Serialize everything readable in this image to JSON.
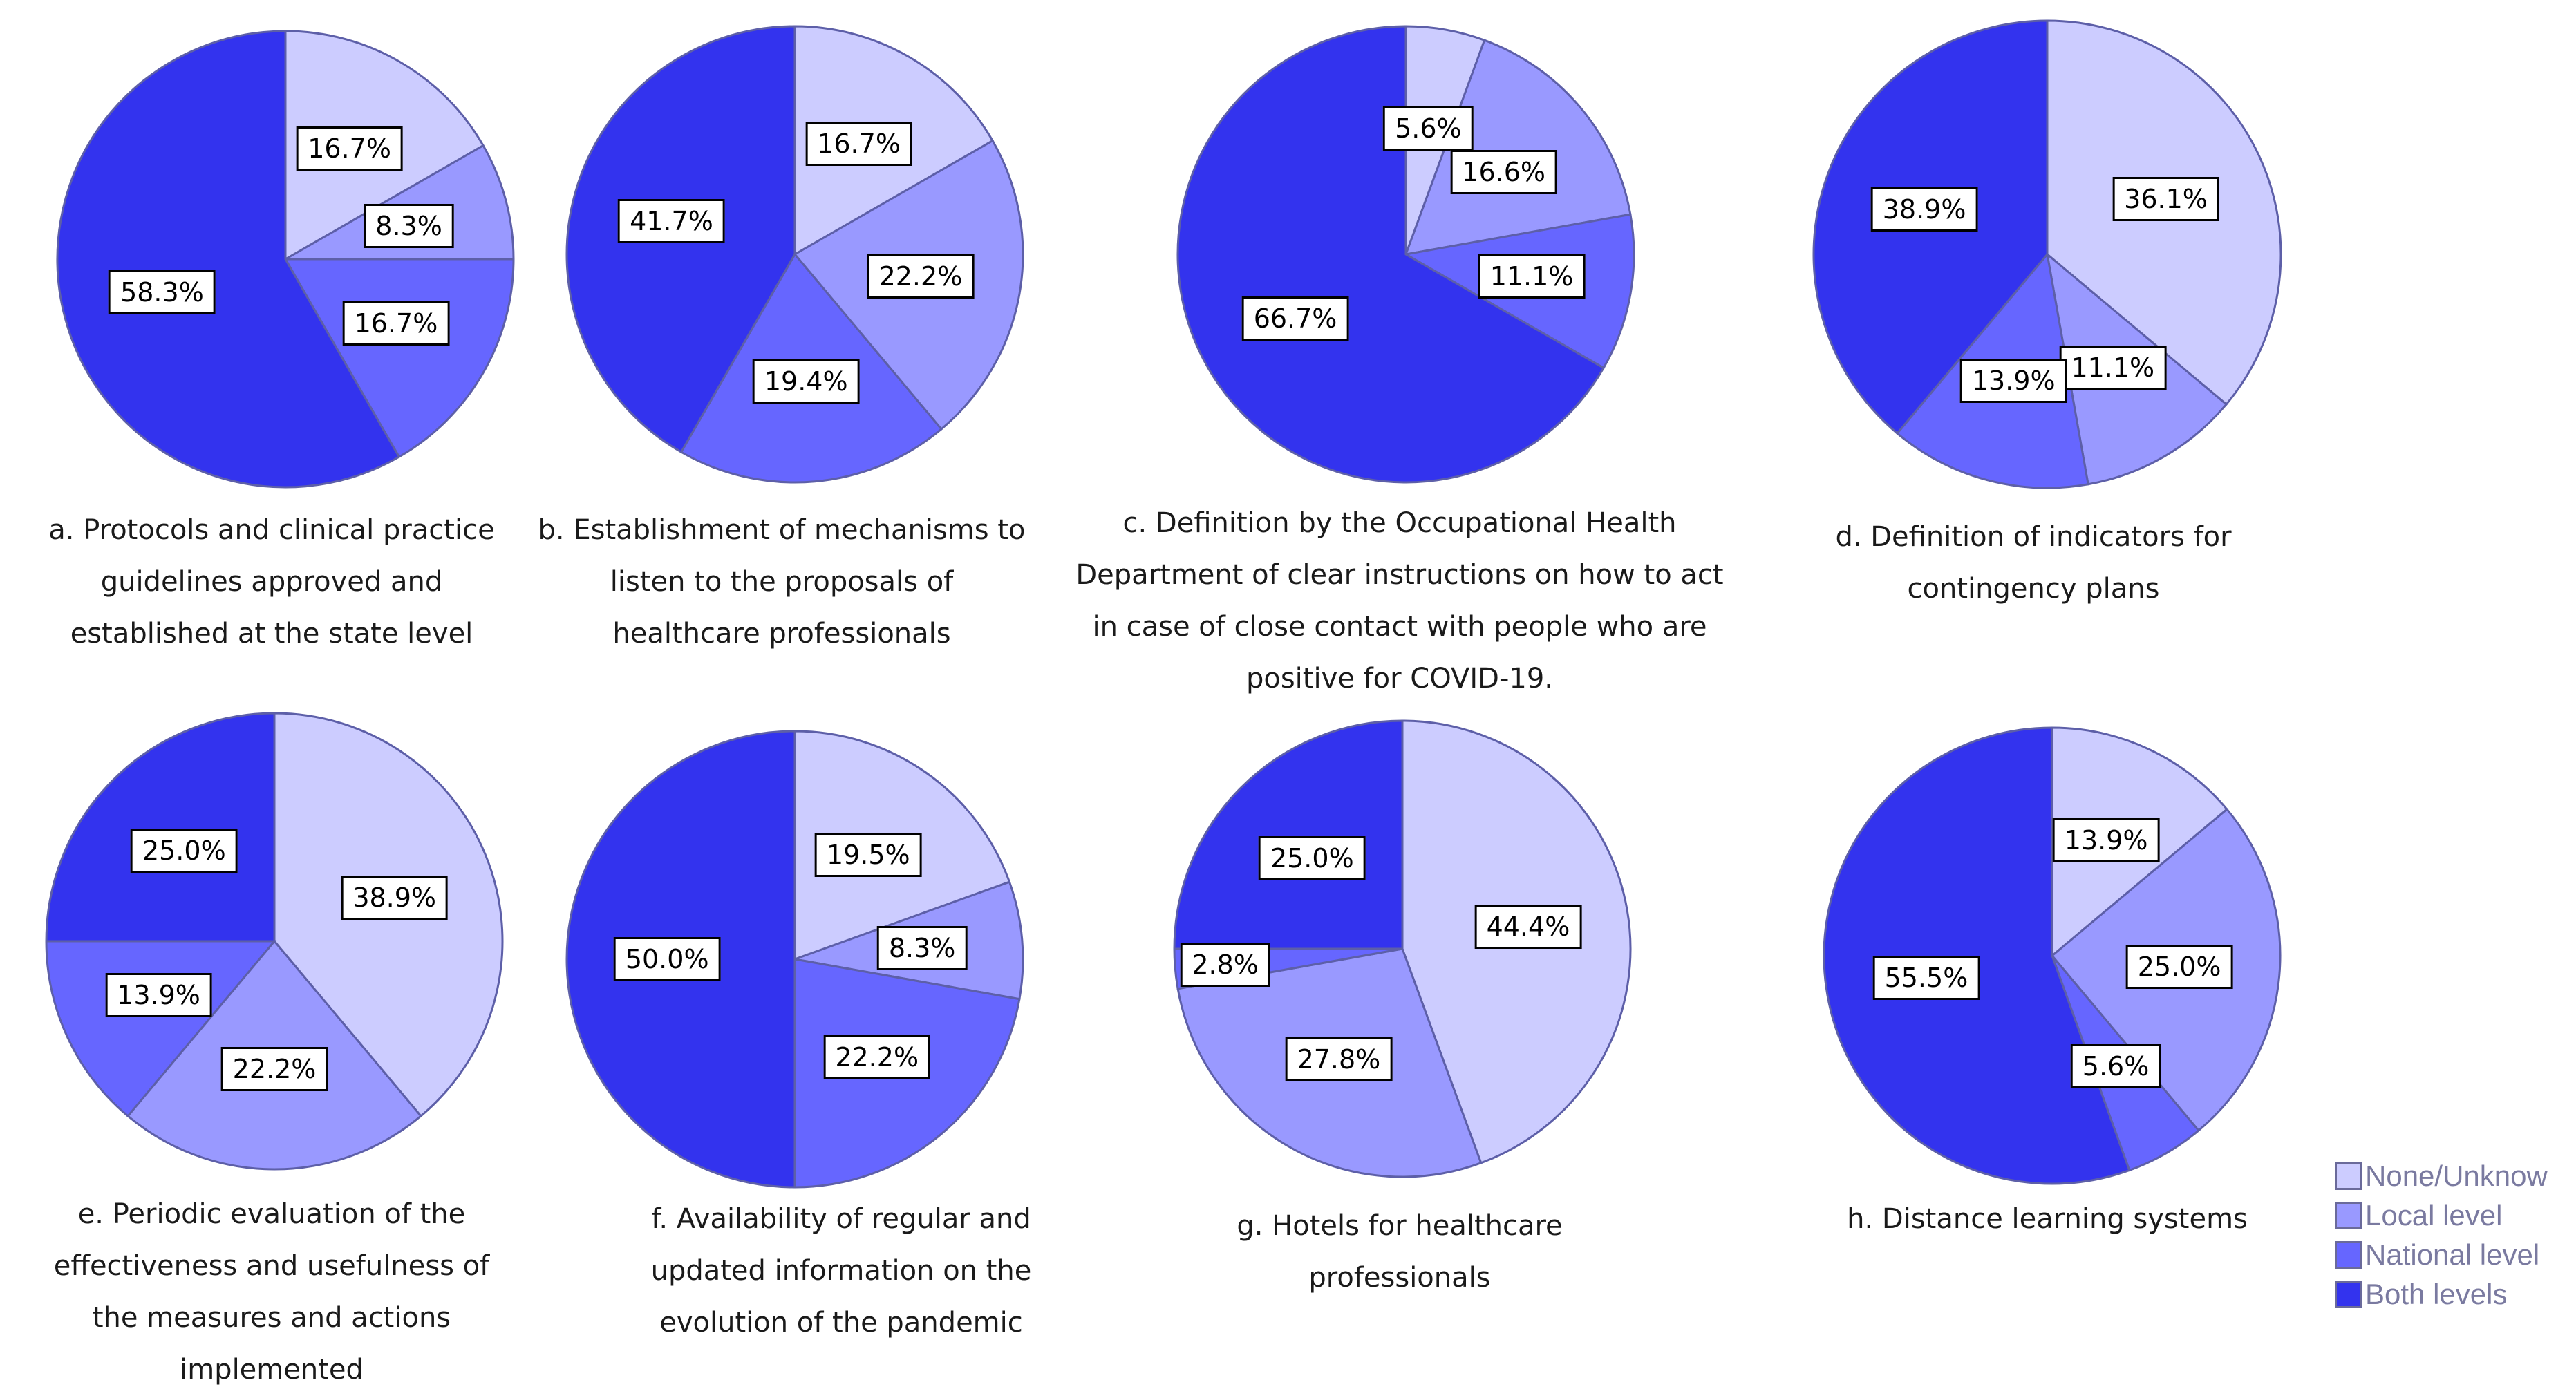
{
  "legend": {
    "items": [
      {
        "label": "None/Unknow",
        "color": "#ccccff"
      },
      {
        "label": "Local level",
        "color": "#9999ff"
      },
      {
        "label": "National level",
        "color": "#6666ff"
      },
      {
        "label": "Both levels",
        "color": "#3333ee"
      }
    ]
  },
  "chart_data": [
    {
      "type": "pie",
      "title": "a. Protocols and clinical practice guidelines approved and established at the state level",
      "title_lines": [
        "a. Protocols and clinical practice",
        "guidelines approved and",
        "established at the state level"
      ],
      "categories": [
        "None/Unknow",
        "Local level",
        "National level",
        "Both levels"
      ],
      "values": [
        16.7,
        8.3,
        16.7,
        58.3
      ],
      "labels": [
        "16.7%",
        "8.3%",
        "16.7%",
        "58.3%"
      ]
    },
    {
      "type": "pie",
      "title": "b. Establishment of mechanisms to listen to the proposals of healthcare professionals",
      "title_lines": [
        "b. Establishment  of mechanisms  to",
        "listen to the proposals of",
        "healthcare professionals"
      ],
      "categories": [
        "None/Unknow",
        "Local level",
        "National level",
        "Both levels"
      ],
      "values": [
        16.7,
        22.2,
        19.4,
        41.7
      ],
      "labels": [
        "16.7%",
        "22.2%",
        "19.4%",
        "41.7%"
      ]
    },
    {
      "type": "pie",
      "title": "c. Definition by the Occupational Health Department of clear instructions on how to act in case of close contact with people who are positive for COVID-19.",
      "title_lines": [
        "c. Definition by the Occupational Health",
        "Department of clear instructions on how to act",
        "in case of close contact with people who are",
        "positive for COVID-19."
      ],
      "categories": [
        "None/Unknow",
        "Local level",
        "National level",
        "Both levels"
      ],
      "values": [
        5.6,
        16.6,
        11.1,
        66.7
      ],
      "labels": [
        "5.6%",
        "16.6%",
        "11.1%",
        "66.7%"
      ]
    },
    {
      "type": "pie",
      "title": "d. Definition of indicators for contingency plans",
      "title_lines": [
        "d. Definition of indicators for",
        "contingency plans"
      ],
      "categories": [
        "None/Unknow",
        "Local level",
        "National level",
        "Both levels"
      ],
      "values": [
        36.1,
        11.1,
        13.9,
        38.9
      ],
      "labels": [
        "36.1%",
        "11.1%",
        "13.9%",
        "38.9%"
      ]
    },
    {
      "type": "pie",
      "title": "e. Periodic evaluation of the effectiveness and usefulness of the measures and actions implemented",
      "title_lines": [
        "e. Periodic evaluation of the",
        "effectiveness and usefulness of",
        "the measures and actions",
        "implemented"
      ],
      "categories": [
        "None/Unknow",
        "Local level",
        "National level",
        "Both levels"
      ],
      "values": [
        38.9,
        22.2,
        13.9,
        25.0
      ],
      "labels": [
        "38.9%",
        "22.2%",
        "13.9%",
        "25.0%"
      ]
    },
    {
      "type": "pie",
      "title": "f. Availability of regular and updated information on the evolution of the pandemic",
      "title_lines": [
        "f. Availability  of regular and",
        "updated information on the",
        "evolution of the pandemic"
      ],
      "categories": [
        "None/Unknow",
        "Local level",
        "National level",
        "Both levels"
      ],
      "values": [
        19.5,
        8.3,
        22.2,
        50.0
      ],
      "labels": [
        "19.5%",
        "8.3%",
        "22.2%",
        "50.0%"
      ]
    },
    {
      "type": "pie",
      "title": "g. Hotels for healthcare professionals",
      "title_lines": [
        "g. Hotels for healthcare",
        "professionals"
      ],
      "categories": [
        "None/Unknow",
        "Local level",
        "National level",
        "Both levels"
      ],
      "values": [
        44.4,
        27.8,
        2.8,
        25.0
      ],
      "labels": [
        "44.4%",
        "27.8%",
        "2.8%",
        "25.0%"
      ]
    },
    {
      "type": "pie",
      "title": "h. Distance learning systems",
      "title_lines": [
        "h. Distance learning systems"
      ],
      "categories": [
        "None/Unknow",
        "Local level",
        "National level",
        "Both levels"
      ],
      "values": [
        13.9,
        25.0,
        5.6,
        55.5
      ],
      "labels": [
        "13.9%",
        "25.0%",
        "5.6%",
        "55.5%"
      ]
    }
  ]
}
